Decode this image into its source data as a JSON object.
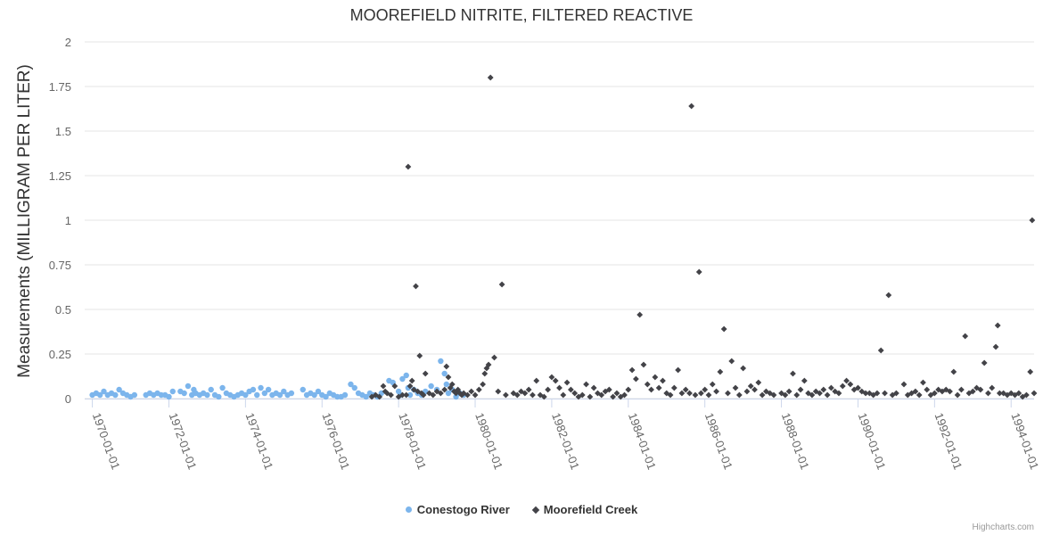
{
  "chart_data": {
    "type": "scatter",
    "title": "MOOREFIELD NITRITE, FILTERED REACTIVE",
    "ylabel": "Measurements (MILLIGRAM PER LITER)",
    "xlabel": "",
    "ylim": [
      0,
      2
    ],
    "yticks": [
      "0",
      "0.25",
      "0.5",
      "0.75",
      "1",
      "1.25",
      "1.5",
      "1.75",
      "2"
    ],
    "ytick_values": [
      0,
      0.25,
      0.5,
      0.75,
      1,
      1.25,
      1.5,
      1.75,
      2
    ],
    "xlim": [
      1969.8,
      1994.6
    ],
    "xticks": [
      "1970-01-01",
      "1972-01-01",
      "1974-01-01",
      "1976-01-01",
      "1978-01-01",
      "1980-01-01",
      "1982-01-01",
      "1984-01-01",
      "1986-01-01",
      "1988-01-01",
      "1990-01-01",
      "1992-01-01",
      "1994-01-01"
    ],
    "xtick_values": [
      1970,
      1972,
      1974,
      1976,
      1978,
      1980,
      1982,
      1984,
      1986,
      1988,
      1990,
      1992,
      1994
    ],
    "grid": true,
    "legend_position": "bottom-center",
    "series": [
      {
        "name": "Conestogo River",
        "color": "#7cb5ec",
        "marker": "circle",
        "points": [
          [
            1970.0,
            0.02
          ],
          [
            1970.1,
            0.03
          ],
          [
            1970.2,
            0.02
          ],
          [
            1970.3,
            0.04
          ],
          [
            1970.4,
            0.02
          ],
          [
            1970.5,
            0.03
          ],
          [
            1970.6,
            0.02
          ],
          [
            1970.7,
            0.05
          ],
          [
            1970.8,
            0.03
          ],
          [
            1970.9,
            0.02
          ],
          [
            1971.0,
            0.01
          ],
          [
            1971.1,
            0.02
          ],
          [
            1971.4,
            0.02
          ],
          [
            1971.5,
            0.03
          ],
          [
            1971.6,
            0.02
          ],
          [
            1971.7,
            0.03
          ],
          [
            1971.8,
            0.02
          ],
          [
            1971.9,
            0.02
          ],
          [
            1972.0,
            0.01
          ],
          [
            1972.1,
            0.04
          ],
          [
            1972.3,
            0.04
          ],
          [
            1972.4,
            0.03
          ],
          [
            1972.5,
            0.07
          ],
          [
            1972.6,
            0.02
          ],
          [
            1972.65,
            0.05
          ],
          [
            1972.7,
            0.03
          ],
          [
            1972.8,
            0.02
          ],
          [
            1972.9,
            0.03
          ],
          [
            1973.0,
            0.02
          ],
          [
            1973.1,
            0.05
          ],
          [
            1973.2,
            0.02
          ],
          [
            1973.3,
            0.01
          ],
          [
            1973.4,
            0.06
          ],
          [
            1973.5,
            0.03
          ],
          [
            1973.6,
            0.02
          ],
          [
            1973.7,
            0.01
          ],
          [
            1973.8,
            0.02
          ],
          [
            1973.9,
            0.03
          ],
          [
            1974.0,
            0.02
          ],
          [
            1974.1,
            0.04
          ],
          [
            1974.2,
            0.05
          ],
          [
            1974.3,
            0.02
          ],
          [
            1974.4,
            0.06
          ],
          [
            1974.5,
            0.03
          ],
          [
            1974.6,
            0.05
          ],
          [
            1974.7,
            0.02
          ],
          [
            1974.8,
            0.03
          ],
          [
            1974.9,
            0.02
          ],
          [
            1975.0,
            0.04
          ],
          [
            1975.1,
            0.02
          ],
          [
            1975.2,
            0.03
          ],
          [
            1975.5,
            0.05
          ],
          [
            1975.6,
            0.02
          ],
          [
            1975.7,
            0.03
          ],
          [
            1975.8,
            0.02
          ],
          [
            1975.9,
            0.04
          ],
          [
            1976.0,
            0.02
          ],
          [
            1976.1,
            0.01
          ],
          [
            1976.2,
            0.03
          ],
          [
            1976.3,
            0.02
          ],
          [
            1976.4,
            0.01
          ],
          [
            1976.5,
            0.01
          ],
          [
            1976.6,
            0.02
          ],
          [
            1976.75,
            0.08
          ],
          [
            1976.85,
            0.06
          ],
          [
            1976.95,
            0.03
          ],
          [
            1977.05,
            0.02
          ],
          [
            1977.15,
            0.01
          ],
          [
            1977.25,
            0.03
          ],
          [
            1977.35,
            0.02
          ],
          [
            1977.45,
            0.01
          ],
          [
            1977.55,
            0.03
          ],
          [
            1977.75,
            0.1
          ],
          [
            1977.85,
            0.09
          ],
          [
            1978.0,
            0.04
          ],
          [
            1978.05,
            0.02
          ],
          [
            1978.1,
            0.11
          ],
          [
            1978.2,
            0.13
          ],
          [
            1978.25,
            0.06
          ],
          [
            1978.3,
            0.02
          ],
          [
            1978.4,
            0.05
          ],
          [
            1978.5,
            0.03
          ],
          [
            1978.6,
            0.02
          ],
          [
            1978.7,
            0.04
          ],
          [
            1978.85,
            0.07
          ],
          [
            1979.0,
            0.05
          ],
          [
            1979.1,
            0.21
          ],
          [
            1979.2,
            0.14
          ],
          [
            1979.25,
            0.08
          ],
          [
            1979.3,
            0.03
          ],
          [
            1979.4,
            0.05
          ],
          [
            1979.5,
            0.01
          ],
          [
            1979.6,
            0.03
          ],
          [
            1979.7,
            0.02
          ]
        ]
      },
      {
        "name": "Moorefield Creek",
        "color": "#434348",
        "marker": "diamond",
        "points": [
          [
            1977.3,
            0.01
          ],
          [
            1977.4,
            0.02
          ],
          [
            1977.5,
            0.01
          ],
          [
            1977.6,
            0.07
          ],
          [
            1977.65,
            0.04
          ],
          [
            1977.7,
            0.03
          ],
          [
            1977.8,
            0.02
          ],
          [
            1977.9,
            0.07
          ],
          [
            1978.0,
            0.01
          ],
          [
            1978.1,
            0.02
          ],
          [
            1978.2,
            0.02
          ],
          [
            1978.25,
            1.3
          ],
          [
            1978.3,
            0.07
          ],
          [
            1978.35,
            0.1
          ],
          [
            1978.4,
            0.05
          ],
          [
            1978.45,
            0.63
          ],
          [
            1978.5,
            0.04
          ],
          [
            1978.55,
            0.24
          ],
          [
            1978.6,
            0.03
          ],
          [
            1978.65,
            0.02
          ],
          [
            1978.7,
            0.14
          ],
          [
            1978.8,
            0.03
          ],
          [
            1978.9,
            0.02
          ],
          [
            1979.0,
            0.04
          ],
          [
            1979.1,
            0.03
          ],
          [
            1979.2,
            0.05
          ],
          [
            1979.25,
            0.18
          ],
          [
            1979.3,
            0.12
          ],
          [
            1979.35,
            0.06
          ],
          [
            1979.4,
            0.08
          ],
          [
            1979.45,
            0.04
          ],
          [
            1979.5,
            0.03
          ],
          [
            1979.55,
            0.05
          ],
          [
            1979.6,
            0.03
          ],
          [
            1979.65,
            0.02
          ],
          [
            1979.7,
            0.03
          ],
          [
            1979.8,
            0.02
          ],
          [
            1979.9,
            0.04
          ],
          [
            1980.0,
            0.02
          ],
          [
            1980.1,
            0.05
          ],
          [
            1980.2,
            0.08
          ],
          [
            1980.25,
            0.14
          ],
          [
            1980.3,
            0.17
          ],
          [
            1980.35,
            0.19
          ],
          [
            1980.4,
            1.8
          ],
          [
            1980.5,
            0.23
          ],
          [
            1980.6,
            0.04
          ],
          [
            1980.7,
            0.64
          ],
          [
            1980.8,
            0.02
          ],
          [
            1981.0,
            0.03
          ],
          [
            1981.1,
            0.02
          ],
          [
            1981.2,
            0.04
          ],
          [
            1981.3,
            0.03
          ],
          [
            1981.4,
            0.05
          ],
          [
            1981.5,
            0.02
          ],
          [
            1981.6,
            0.1
          ],
          [
            1981.7,
            0.02
          ],
          [
            1981.8,
            0.01
          ],
          [
            1981.9,
            0.05
          ],
          [
            1982.0,
            0.12
          ],
          [
            1982.1,
            0.1
          ],
          [
            1982.2,
            0.06
          ],
          [
            1982.3,
            0.02
          ],
          [
            1982.4,
            0.09
          ],
          [
            1982.5,
            0.05
          ],
          [
            1982.6,
            0.03
          ],
          [
            1982.7,
            0.01
          ],
          [
            1982.8,
            0.02
          ],
          [
            1982.9,
            0.08
          ],
          [
            1983.0,
            0.01
          ],
          [
            1983.1,
            0.06
          ],
          [
            1983.2,
            0.03
          ],
          [
            1983.3,
            0.02
          ],
          [
            1983.4,
            0.04
          ],
          [
            1983.5,
            0.05
          ],
          [
            1983.6,
            0.01
          ],
          [
            1983.7,
            0.03
          ],
          [
            1983.8,
            0.01
          ],
          [
            1983.9,
            0.02
          ],
          [
            1984.0,
            0.05
          ],
          [
            1984.1,
            0.16
          ],
          [
            1984.2,
            0.11
          ],
          [
            1984.3,
            0.47
          ],
          [
            1984.4,
            0.19
          ],
          [
            1984.5,
            0.08
          ],
          [
            1984.6,
            0.05
          ],
          [
            1984.7,
            0.12
          ],
          [
            1984.8,
            0.06
          ],
          [
            1984.9,
            0.1
          ],
          [
            1985.0,
            0.03
          ],
          [
            1985.1,
            0.02
          ],
          [
            1985.2,
            0.06
          ],
          [
            1985.3,
            0.16
          ],
          [
            1985.4,
            0.03
          ],
          [
            1985.5,
            0.05
          ],
          [
            1985.6,
            0.03
          ],
          [
            1985.65,
            1.64
          ],
          [
            1985.75,
            0.02
          ],
          [
            1985.85,
            0.71
          ],
          [
            1985.9,
            0.03
          ],
          [
            1986.0,
            0.05
          ],
          [
            1986.1,
            0.02
          ],
          [
            1986.2,
            0.08
          ],
          [
            1986.3,
            0.04
          ],
          [
            1986.4,
            0.15
          ],
          [
            1986.5,
            0.39
          ],
          [
            1986.6,
            0.03
          ],
          [
            1986.7,
            0.21
          ],
          [
            1986.8,
            0.06
          ],
          [
            1986.9,
            0.02
          ],
          [
            1987.0,
            0.17
          ],
          [
            1987.1,
            0.04
          ],
          [
            1987.2,
            0.07
          ],
          [
            1987.3,
            0.05
          ],
          [
            1987.4,
            0.09
          ],
          [
            1987.5,
            0.02
          ],
          [
            1987.6,
            0.04
          ],
          [
            1987.7,
            0.03
          ],
          [
            1987.8,
            0.02
          ],
          [
            1988.0,
            0.03
          ],
          [
            1988.1,
            0.02
          ],
          [
            1988.2,
            0.04
          ],
          [
            1988.3,
            0.14
          ],
          [
            1988.4,
            0.02
          ],
          [
            1988.5,
            0.05
          ],
          [
            1988.6,
            0.1
          ],
          [
            1988.7,
            0.03
          ],
          [
            1988.8,
            0.02
          ],
          [
            1988.9,
            0.04
          ],
          [
            1989.0,
            0.03
          ],
          [
            1989.1,
            0.05
          ],
          [
            1989.2,
            0.02
          ],
          [
            1989.3,
            0.06
          ],
          [
            1989.4,
            0.04
          ],
          [
            1989.5,
            0.03
          ],
          [
            1989.6,
            0.07
          ],
          [
            1989.7,
            0.1
          ],
          [
            1989.8,
            0.08
          ],
          [
            1989.9,
            0.05
          ],
          [
            1990.0,
            0.06
          ],
          [
            1990.1,
            0.04
          ],
          [
            1990.2,
            0.03
          ],
          [
            1990.3,
            0.03
          ],
          [
            1990.4,
            0.02
          ],
          [
            1990.5,
            0.03
          ],
          [
            1990.6,
            0.27
          ],
          [
            1990.7,
            0.03
          ],
          [
            1990.8,
            0.58
          ],
          [
            1990.9,
            0.02
          ],
          [
            1991.0,
            0.03
          ],
          [
            1991.2,
            0.08
          ],
          [
            1991.3,
            0.02
          ],
          [
            1991.4,
            0.03
          ],
          [
            1991.5,
            0.04
          ],
          [
            1991.6,
            0.02
          ],
          [
            1991.7,
            0.09
          ],
          [
            1991.8,
            0.05
          ],
          [
            1991.9,
            0.02
          ],
          [
            1992.0,
            0.03
          ],
          [
            1992.1,
            0.05
          ],
          [
            1992.2,
            0.04
          ],
          [
            1992.3,
            0.05
          ],
          [
            1992.4,
            0.04
          ],
          [
            1992.5,
            0.15
          ],
          [
            1992.6,
            0.02
          ],
          [
            1992.7,
            0.05
          ],
          [
            1992.8,
            0.35
          ],
          [
            1992.9,
            0.03
          ],
          [
            1993.0,
            0.04
          ],
          [
            1993.1,
            0.06
          ],
          [
            1993.2,
            0.05
          ],
          [
            1993.3,
            0.2
          ],
          [
            1993.4,
            0.03
          ],
          [
            1993.5,
            0.06
          ],
          [
            1993.6,
            0.29
          ],
          [
            1993.65,
            0.41
          ],
          [
            1993.7,
            0.03
          ],
          [
            1993.8,
            0.03
          ],
          [
            1993.9,
            0.02
          ],
          [
            1994.0,
            0.03
          ],
          [
            1994.1,
            0.02
          ],
          [
            1994.2,
            0.03
          ],
          [
            1994.3,
            0.01
          ],
          [
            1994.4,
            0.02
          ],
          [
            1994.5,
            0.15
          ],
          [
            1994.55,
            1.0
          ],
          [
            1994.6,
            0.03
          ]
        ]
      }
    ]
  },
  "credits": "Highcharts.com"
}
